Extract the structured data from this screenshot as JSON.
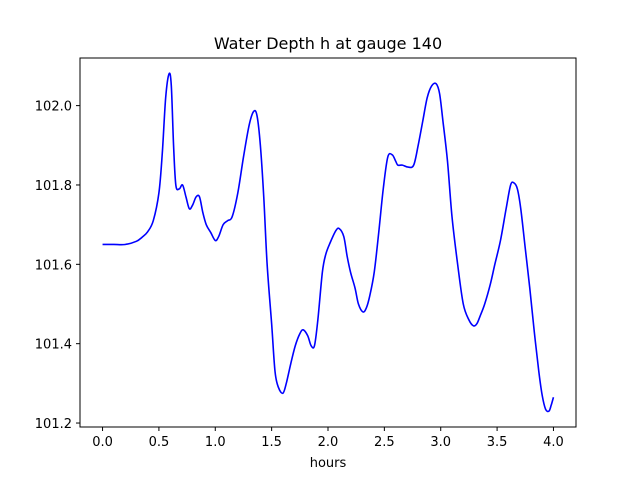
{
  "chart_data": {
    "type": "line",
    "title": "Water Depth h at gauge 140",
    "xlabel": "hours",
    "ylabel": "",
    "xlim": [
      -0.2,
      4.2
    ],
    "ylim": [
      101.19,
      102.12
    ],
    "x_ticks": [
      0.0,
      0.5,
      1.0,
      1.5,
      2.0,
      2.5,
      3.0,
      3.5,
      4.0
    ],
    "x_tick_labels": [
      "0.0",
      "0.5",
      "1.0",
      "1.5",
      "2.0",
      "2.5",
      "3.0",
      "3.5",
      "4.0"
    ],
    "y_ticks": [
      101.2,
      101.4,
      101.6,
      101.8,
      102.0
    ],
    "y_tick_labels": [
      "101.2",
      "101.4",
      "101.6",
      "101.8",
      "102.0"
    ],
    "grid": false,
    "legend": "none",
    "series": [
      {
        "color": "#0000ff",
        "x": [
          0.0,
          0.1,
          0.2,
          0.3,
          0.35,
          0.4,
          0.45,
          0.5,
          0.53,
          0.56,
          0.59,
          0.61,
          0.63,
          0.65,
          0.68,
          0.71,
          0.74,
          0.77,
          0.8,
          0.83,
          0.86,
          0.89,
          0.92,
          0.96,
          1.0,
          1.03,
          1.07,
          1.11,
          1.15,
          1.2,
          1.25,
          1.3,
          1.34,
          1.37,
          1.4,
          1.43,
          1.46,
          1.5,
          1.53,
          1.56,
          1.6,
          1.63,
          1.67,
          1.71,
          1.75,
          1.78,
          1.82,
          1.85,
          1.88,
          1.91,
          1.95,
          1.98,
          2.02,
          2.07,
          2.1,
          2.14,
          2.17,
          2.2,
          2.24,
          2.27,
          2.31,
          2.34,
          2.37,
          2.41,
          2.45,
          2.49,
          2.53,
          2.57,
          2.6,
          2.62,
          2.66,
          2.71,
          2.76,
          2.8,
          2.84,
          2.88,
          2.92,
          2.96,
          2.99,
          3.02,
          3.06,
          3.1,
          3.15,
          3.2,
          3.25,
          3.29,
          3.32,
          3.35,
          3.39,
          3.44,
          3.48,
          3.53,
          3.58,
          3.62,
          3.65,
          3.68,
          3.71,
          3.75,
          3.79,
          3.83,
          3.87,
          3.9,
          3.93,
          3.96,
          3.98,
          4.0
        ],
        "y": [
          101.65,
          101.65,
          101.65,
          101.658,
          101.668,
          101.682,
          101.71,
          101.78,
          101.88,
          102.02,
          102.08,
          102.05,
          101.9,
          101.8,
          101.79,
          101.8,
          101.77,
          101.74,
          101.75,
          101.77,
          101.77,
          101.73,
          101.7,
          101.68,
          101.66,
          101.67,
          101.7,
          101.71,
          101.72,
          101.78,
          101.87,
          101.95,
          101.985,
          101.975,
          101.9,
          101.77,
          101.6,
          101.45,
          101.33,
          101.29,
          101.275,
          101.3,
          101.35,
          101.395,
          101.425,
          101.435,
          101.42,
          101.395,
          101.395,
          101.46,
          101.58,
          101.625,
          101.655,
          101.685,
          101.69,
          101.67,
          101.62,
          101.58,
          101.54,
          101.5,
          101.48,
          101.49,
          101.52,
          101.58,
          101.68,
          101.79,
          101.87,
          101.876,
          101.86,
          101.85,
          101.85,
          101.845,
          101.85,
          101.9,
          101.96,
          102.02,
          102.05,
          102.055,
          102.03,
          101.96,
          101.86,
          101.72,
          101.6,
          101.5,
          101.46,
          101.445,
          101.45,
          101.47,
          101.5,
          101.55,
          101.6,
          101.66,
          101.74,
          101.8,
          101.805,
          101.79,
          101.74,
          101.64,
          101.54,
          101.43,
          101.33,
          101.27,
          101.235,
          101.23,
          101.245,
          101.265
        ]
      }
    ]
  }
}
